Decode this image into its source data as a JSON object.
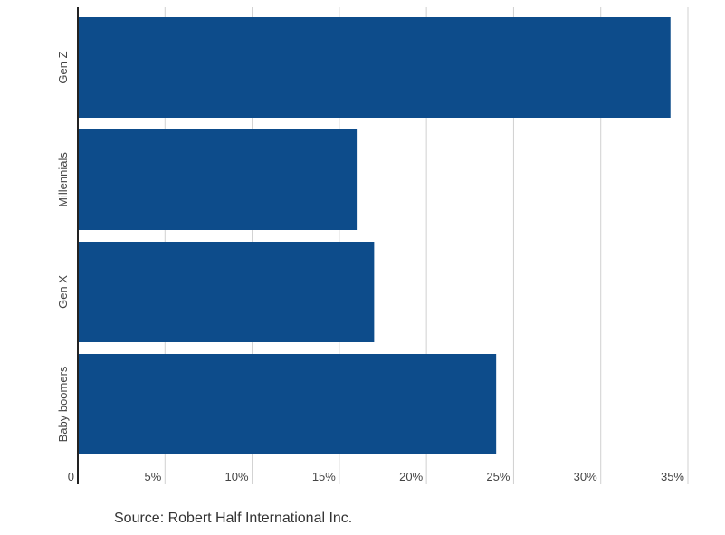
{
  "chart_data": {
    "type": "bar",
    "orientation": "horizontal",
    "categories": [
      "Gen Z",
      "Millennials",
      "Gen X",
      "Baby boomers"
    ],
    "values": [
      34,
      16,
      17,
      24
    ],
    "color": "#0d4c8b",
    "xlim": [
      0,
      35
    ],
    "xticks": [
      0,
      {
        "value": 5,
        "label": "5%"
      },
      {
        "value": 10,
        "label": "10%"
      },
      {
        "value": 15,
        "label": "15%"
      },
      {
        "value": 20,
        "label": "20%"
      },
      {
        "value": 25,
        "label": "25%"
      },
      {
        "value": 30,
        "label": "30%"
      },
      {
        "value": 35,
        "label": "35%"
      }
    ],
    "grid": true,
    "source": "Source: Robert Half International Inc."
  }
}
